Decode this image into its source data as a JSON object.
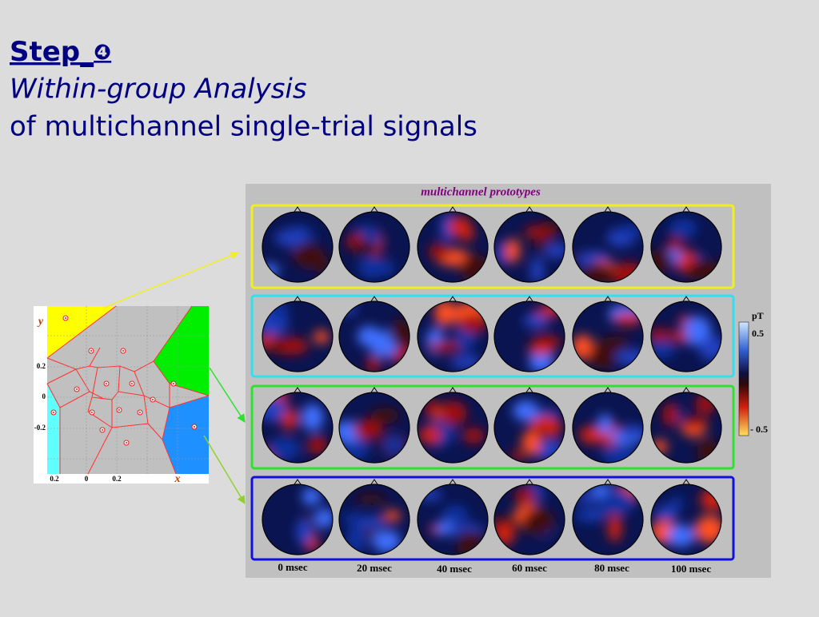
{
  "title": {
    "step": "Step_",
    "number": "❹",
    "line1": "Within-group Analysis",
    "line2": "of multichannel single-trial signals"
  },
  "figure": {
    "title": "multichannel prototypes",
    "unit": "pT",
    "colorbar_labels": [
      "0.5",
      "- 0.5"
    ],
    "time_labels": [
      "0 msec",
      "20 msec",
      "40 msec",
      "60 msec",
      "80 msec",
      "100 msec"
    ]
  },
  "scatter_panel": {
    "y_label": "y",
    "x_label": "x",
    "y_ticks": [
      "0.2",
      "0",
      "-0.2"
    ],
    "x_ticks": [
      "0.2",
      "0",
      "0.2"
    ]
  }
}
